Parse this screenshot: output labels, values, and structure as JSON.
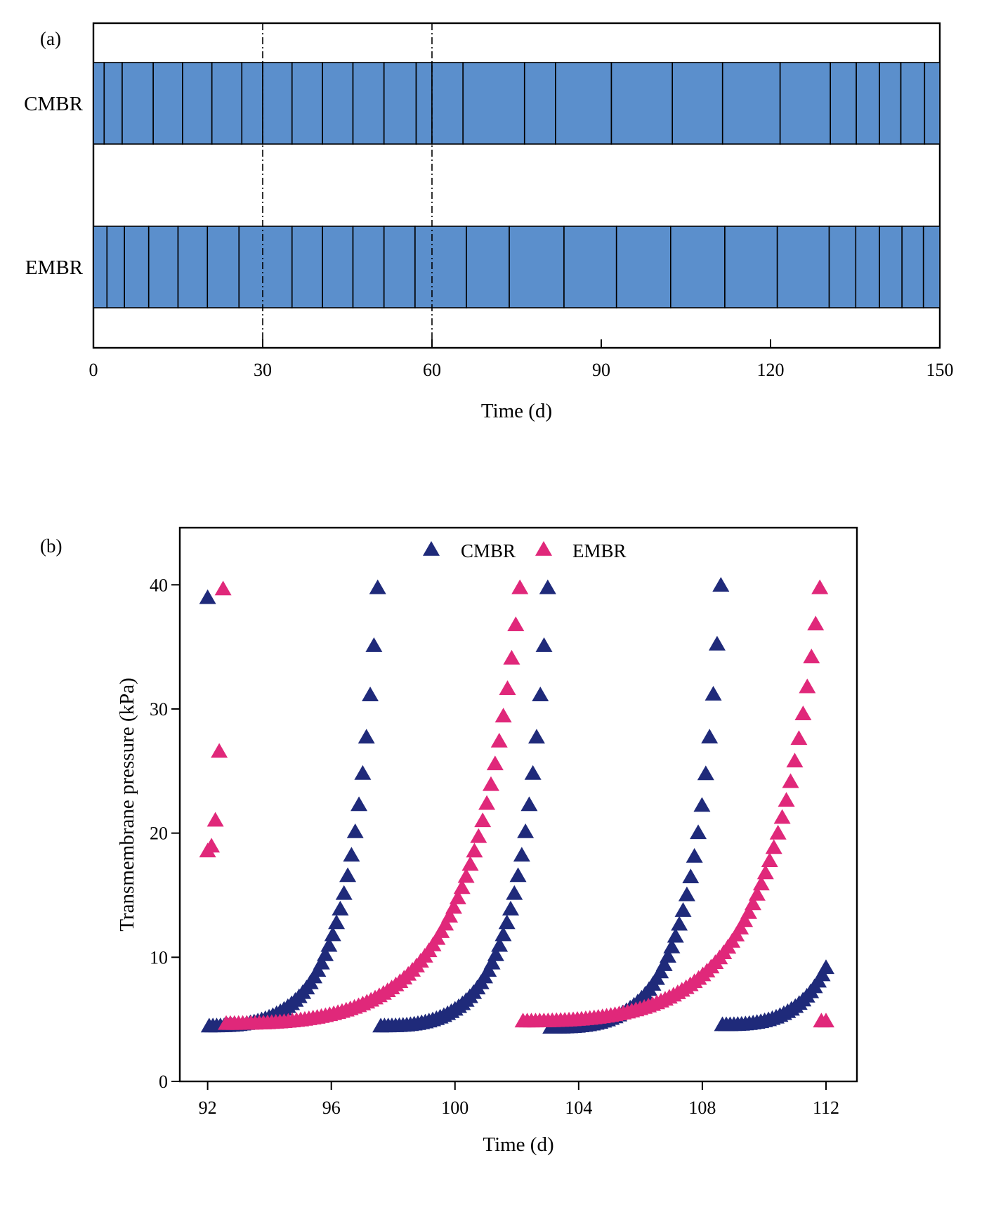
{
  "colors": {
    "cmbr": "#1f2a7a",
    "embr": "#e0287a",
    "bar": "#5b8fcc",
    "axis": "#000000"
  },
  "chart_data": [
    {
      "type": "bar",
      "panel_label": "(a)",
      "xlabel": "Time (d)",
      "xlim": [
        0,
        150
      ],
      "xticks": [
        0,
        30,
        60,
        90,
        120,
        150
      ],
      "grid": false,
      "reference_lines_x": [
        30,
        60
      ],
      "rows": [
        {
          "name": "CMBR",
          "cleaning_days": [
            0,
            1.9,
            5.1,
            10.6,
            15.8,
            21.0,
            26.3,
            30.0,
            35.2,
            40.6,
            46.0,
            51.5,
            57.2,
            60.0,
            65.5,
            76.4,
            81.9,
            91.8,
            102.6,
            111.5,
            121.7,
            130.6,
            135.2,
            139.3,
            143.1,
            147.3,
            150
          ]
        },
        {
          "name": "EMBR",
          "cleaning_days": [
            0,
            2.4,
            5.5,
            9.8,
            15.0,
            20.2,
            25.8,
            35.2,
            40.6,
            46.0,
            51.5,
            57.0,
            66.1,
            73.7,
            83.4,
            92.7,
            102.3,
            111.9,
            121.2,
            130.4,
            135.1,
            139.3,
            143.3,
            147.1,
            150
          ]
        }
      ]
    },
    {
      "type": "scatter",
      "panel_label": "(b)",
      "xlabel": "Time (d)",
      "ylabel": "Transmembrane pressure (kPa)",
      "xlim": [
        91.1,
        113.0
      ],
      "ylim": [
        0,
        44.6
      ],
      "xticks": [
        92,
        96,
        100,
        104,
        108,
        112
      ],
      "yticks": [
        0,
        10,
        20,
        30,
        40
      ],
      "grid": false,
      "legend": {
        "placement": "top-center",
        "orientation": "horizontal"
      },
      "marker": "triangle",
      "series": [
        {
          "name": "CMBR",
          "color": "#1f2a7a",
          "segments": [
            {
              "t0": 92.0,
              "t1": 92.0,
              "v0": 38.9,
              "v1": 38.9,
              "n": 1
            },
            {
              "t0": 92.05,
              "t1": 97.5,
              "v0": 4.4,
              "v1": 39.7,
              "n": 46
            },
            {
              "t0": 97.6,
              "t1": 103.0,
              "v0": 4.4,
              "v1": 39.7,
              "n": 46
            },
            {
              "t0": 103.1,
              "t1": 108.6,
              "v0": 4.3,
              "v1": 39.9,
              "n": 46
            },
            {
              "t0": 108.65,
              "t1": 112.0,
              "v0": 4.5,
              "v1": 9.1,
              "n": 28
            }
          ]
        },
        {
          "name": "EMBR",
          "color": "#e0287a",
          "segments": [
            {
              "t0": 92.0,
              "t1": 92.5,
              "v0": 18.5,
              "v1": 39.6,
              "n": 5
            },
            {
              "t0": 92.6,
              "t1": 102.1,
              "v0": 4.6,
              "v1": 39.7,
              "n": 72
            },
            {
              "t0": 102.2,
              "t1": 111.8,
              "v0": 4.8,
              "v1": 39.7,
              "n": 72
            },
            {
              "t0": 111.85,
              "t1": 112.0,
              "v0": 4.8,
              "v1": 4.8,
              "n": 2
            }
          ]
        }
      ]
    }
  ]
}
